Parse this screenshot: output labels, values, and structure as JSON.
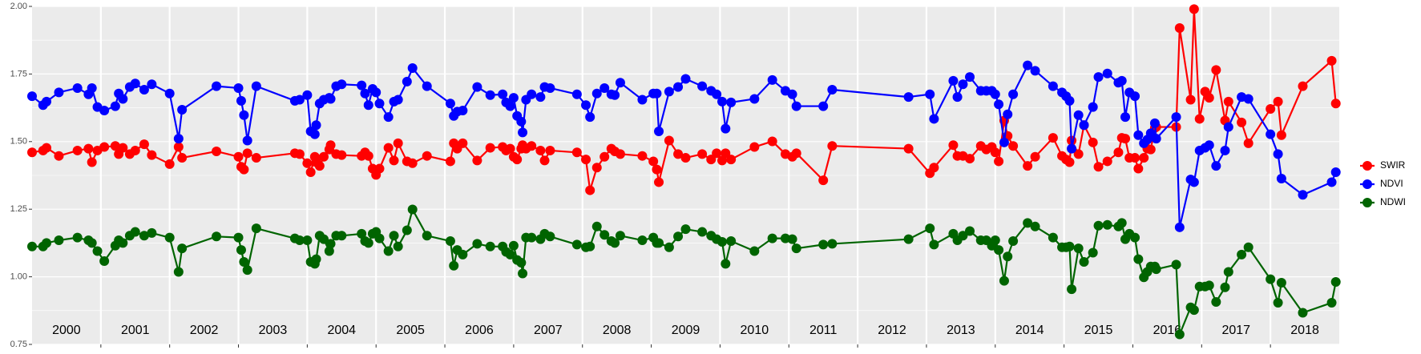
{
  "chart_data": {
    "type": "line",
    "x": [
      2000.0,
      2000.16,
      2000.21,
      2000.39,
      2000.66,
      2000.82,
      2000.87,
      2000.95,
      2001.05,
      2001.21,
      2001.26,
      2001.32,
      2001.42,
      2001.5,
      2001.63,
      2001.74,
      2002.0,
      2002.13,
      2002.18,
      2002.68,
      2003.0,
      2003.04,
      2003.08,
      2003.13,
      2003.26,
      2003.82,
      2003.89,
      2004.0,
      2004.05,
      2004.11,
      2004.13,
      2004.18,
      2004.24,
      2004.32,
      2004.34,
      2004.42,
      2004.5,
      2004.79,
      2004.84,
      2004.89,
      2004.95,
      2005.0,
      2005.05,
      2005.18,
      2005.26,
      2005.32,
      2005.45,
      2005.53,
      2005.74,
      2006.08,
      2006.13,
      2006.18,
      2006.26,
      2006.47,
      2006.66,
      2006.84,
      2006.89,
      2006.95,
      2007.0,
      2007.05,
      2007.11,
      2007.13,
      2007.18,
      2007.26,
      2007.39,
      2007.45,
      2007.53,
      2007.92,
      2008.05,
      2008.11,
      2008.21,
      2008.32,
      2008.42,
      2008.47,
      2008.55,
      2008.87,
      2009.03,
      2009.08,
      2009.11,
      2009.26,
      2009.39,
      2009.5,
      2009.74,
      2009.87,
      2009.95,
      2010.03,
      2010.08,
      2010.16,
      2010.5,
      2010.76,
      2010.95,
      2011.05,
      2011.11,
      2011.5,
      2011.63,
      2012.74,
      2013.05,
      2013.11,
      2013.39,
      2013.45,
      2013.53,
      2013.63,
      2013.79,
      2013.87,
      2013.95,
      2014.0,
      2014.05,
      2014.13,
      2014.18,
      2014.26,
      2014.47,
      2014.58,
      2014.84,
      2014.97,
      2015.03,
      2015.08,
      2015.11,
      2015.21,
      2015.29,
      2015.42,
      2015.5,
      2015.63,
      2015.79,
      2015.84,
      2015.89,
      2015.95,
      2016.03,
      2016.08,
      2016.16,
      2016.21,
      2016.26,
      2016.32,
      2016.34,
      2016.63,
      2016.68,
      2016.84,
      2016.89,
      2016.97,
      2017.05,
      2017.11,
      2017.21,
      2017.34,
      2017.39,
      2017.58,
      2017.68,
      2018.0,
      2018.11,
      2018.16,
      2018.47,
      2018.89,
      2018.95
    ],
    "series": [
      {
        "name": "SWIR",
        "color": "#ff0000",
        "values": [
          1.46,
          1.467,
          1.477,
          1.447,
          1.467,
          1.474,
          1.424,
          1.467,
          1.48,
          1.484,
          1.454,
          1.477,
          1.454,
          1.467,
          1.49,
          1.45,
          1.417,
          1.48,
          1.44,
          1.464,
          1.444,
          1.407,
          1.397,
          1.457,
          1.44,
          1.457,
          1.454,
          1.42,
          1.387,
          1.444,
          1.424,
          1.41,
          1.444,
          1.471,
          1.487,
          1.454,
          1.45,
          1.447,
          1.46,
          1.447,
          1.4,
          1.377,
          1.4,
          1.477,
          1.43,
          1.494,
          1.427,
          1.42,
          1.447,
          1.427,
          1.494,
          1.474,
          1.494,
          1.43,
          1.477,
          1.48,
          1.467,
          1.474,
          1.444,
          1.434,
          1.474,
          1.487,
          1.474,
          1.484,
          1.467,
          1.43,
          1.467,
          1.46,
          1.434,
          1.32,
          1.404,
          1.444,
          1.474,
          1.464,
          1.454,
          1.447,
          1.427,
          1.397,
          1.35,
          1.504,
          1.454,
          1.44,
          1.454,
          1.434,
          1.457,
          1.43,
          1.457,
          1.434,
          1.48,
          1.501,
          1.454,
          1.444,
          1.457,
          1.357,
          1.484,
          1.474,
          1.383,
          1.404,
          1.487,
          1.447,
          1.447,
          1.437,
          1.484,
          1.471,
          1.48,
          1.46,
          1.427,
          1.578,
          1.521,
          1.484,
          1.41,
          1.444,
          1.514,
          1.447,
          1.434,
          1.424,
          1.504,
          1.454,
          1.561,
          1.497,
          1.407,
          1.427,
          1.46,
          1.514,
          1.511,
          1.44,
          1.44,
          1.4,
          1.44,
          1.474,
          1.471,
          1.551,
          1.554,
          1.554,
          1.92,
          1.655,
          1.99,
          1.584,
          1.685,
          1.662,
          1.765,
          1.578,
          1.648,
          1.571,
          1.494,
          1.621,
          1.648,
          1.524,
          1.705,
          1.799,
          1.641
        ]
      },
      {
        "name": "NDVI",
        "color": "#0000ff",
        "values": [
          1.668,
          1.635,
          1.648,
          1.682,
          1.698,
          1.675,
          1.698,
          1.628,
          1.615,
          1.631,
          1.678,
          1.658,
          1.702,
          1.715,
          1.692,
          1.712,
          1.678,
          1.511,
          1.618,
          1.705,
          1.698,
          1.651,
          1.598,
          1.504,
          1.705,
          1.651,
          1.655,
          1.672,
          1.538,
          1.527,
          1.561,
          1.641,
          1.655,
          1.662,
          1.658,
          1.705,
          1.712,
          1.708,
          1.678,
          1.635,
          1.695,
          1.682,
          1.641,
          1.591,
          1.648,
          1.655,
          1.722,
          1.772,
          1.705,
          1.641,
          1.595,
          1.611,
          1.615,
          1.702,
          1.672,
          1.675,
          1.645,
          1.631,
          1.662,
          1.595,
          1.574,
          1.534,
          1.655,
          1.675,
          1.665,
          1.702,
          1.698,
          1.675,
          1.635,
          1.591,
          1.678,
          1.698,
          1.675,
          1.672,
          1.718,
          1.655,
          1.678,
          1.678,
          1.538,
          1.685,
          1.702,
          1.732,
          1.705,
          1.688,
          1.675,
          1.648,
          1.548,
          1.645,
          1.658,
          1.728,
          1.688,
          1.675,
          1.631,
          1.631,
          1.692,
          1.665,
          1.675,
          1.584,
          1.725,
          1.665,
          1.712,
          1.739,
          1.688,
          1.688,
          1.688,
          1.675,
          1.638,
          1.497,
          1.601,
          1.675,
          1.782,
          1.762,
          1.705,
          1.682,
          1.668,
          1.651,
          1.474,
          1.598,
          1.561,
          1.628,
          1.739,
          1.752,
          1.718,
          1.725,
          1.591,
          1.682,
          1.668,
          1.524,
          1.494,
          1.507,
          1.531,
          1.568,
          1.511,
          1.591,
          1.183,
          1.36,
          1.35,
          1.467,
          1.477,
          1.487,
          1.41,
          1.467,
          1.554,
          1.665,
          1.658,
          1.527,
          1.454,
          1.363,
          1.303,
          1.35,
          1.387
        ]
      },
      {
        "name": "NDWI",
        "color": "#006400",
        "values": [
          1.112,
          1.112,
          1.125,
          1.135,
          1.145,
          1.135,
          1.125,
          1.095,
          1.058,
          1.115,
          1.135,
          1.125,
          1.152,
          1.166,
          1.152,
          1.162,
          1.145,
          1.018,
          1.105,
          1.149,
          1.145,
          1.099,
          1.055,
          1.025,
          1.179,
          1.142,
          1.135,
          1.135,
          1.055,
          1.048,
          1.065,
          1.152,
          1.139,
          1.095,
          1.122,
          1.152,
          1.152,
          1.159,
          1.132,
          1.125,
          1.159,
          1.166,
          1.142,
          1.095,
          1.152,
          1.112,
          1.172,
          1.249,
          1.152,
          1.132,
          1.041,
          1.099,
          1.082,
          1.122,
          1.112,
          1.112,
          1.092,
          1.082,
          1.115,
          1.062,
          1.052,
          1.012,
          1.145,
          1.145,
          1.139,
          1.159,
          1.149,
          1.119,
          1.109,
          1.112,
          1.186,
          1.155,
          1.132,
          1.125,
          1.152,
          1.135,
          1.145,
          1.125,
          1.125,
          1.109,
          1.149,
          1.176,
          1.166,
          1.152,
          1.139,
          1.129,
          1.048,
          1.132,
          1.095,
          1.142,
          1.142,
          1.139,
          1.105,
          1.119,
          1.122,
          1.139,
          1.179,
          1.119,
          1.159,
          1.135,
          1.152,
          1.169,
          1.135,
          1.135,
          1.115,
          1.135,
          1.099,
          0.985,
          1.075,
          1.132,
          1.199,
          1.186,
          1.145,
          1.109,
          1.109,
          1.112,
          0.954,
          1.105,
          1.055,
          1.089,
          1.189,
          1.192,
          1.186,
          1.199,
          1.139,
          1.159,
          1.145,
          1.065,
          0.998,
          1.018,
          1.038,
          1.038,
          1.028,
          1.045,
          0.787,
          0.887,
          0.877,
          0.964,
          0.964,
          0.968,
          0.907,
          0.961,
          1.018,
          1.082,
          1.109,
          0.991,
          0.904,
          0.978,
          0.867,
          0.904,
          0.981
        ]
      }
    ],
    "xlim": [
      2000,
      2019
    ],
    "xticks": [
      {
        "value": 2000.5,
        "label": "2000"
      },
      {
        "value": 2001.5,
        "label": "2001"
      },
      {
        "value": 2002.5,
        "label": "2002"
      },
      {
        "value": 2003.5,
        "label": "2003"
      },
      {
        "value": 2004.5,
        "label": "2004"
      },
      {
        "value": 2005.5,
        "label": "2005"
      },
      {
        "value": 2006.5,
        "label": "2006"
      },
      {
        "value": 2007.5,
        "label": "2007"
      },
      {
        "value": 2008.5,
        "label": "2008"
      },
      {
        "value": 2009.5,
        "label": "2009"
      },
      {
        "value": 2010.5,
        "label": "2010"
      },
      {
        "value": 2011.5,
        "label": "2011"
      },
      {
        "value": 2012.5,
        "label": "2012"
      },
      {
        "value": 2013.5,
        "label": "2013"
      },
      {
        "value": 2014.5,
        "label": "2014"
      },
      {
        "value": 2015.5,
        "label": "2015"
      },
      {
        "value": 2016.5,
        "label": "2016"
      },
      {
        "value": 2017.5,
        "label": "2017"
      },
      {
        "value": 2018.5,
        "label": "2018"
      }
    ],
    "ylim": [
      0.75,
      2.0
    ],
    "yticks": [
      {
        "value": 0.75,
        "label": "0.75"
      },
      {
        "value": 1.0,
        "label": "1.00"
      },
      {
        "value": 1.25,
        "label": "1.25"
      },
      {
        "value": 1.5,
        "label": "1.50"
      },
      {
        "value": 1.75,
        "label": "1.75"
      },
      {
        "value": 2.0,
        "label": "2.00"
      }
    ],
    "grid": true,
    "legend": "right"
  }
}
